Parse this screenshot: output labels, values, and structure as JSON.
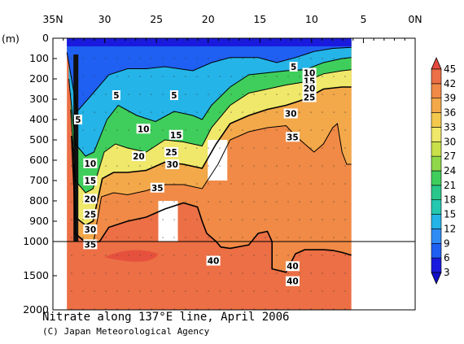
{
  "chart_data": {
    "type": "heatmap",
    "title": "Nitrate along 137°E line, April 2006",
    "credit": "(C) Japan Meteorological Agency",
    "xlabel": "",
    "ylabel": "(m)",
    "x_ticks": [
      "35N",
      "30",
      "25",
      "20",
      "15",
      "10",
      "5",
      "0N"
    ],
    "x_tick_values": [
      35,
      30,
      25,
      20,
      15,
      10,
      5,
      0
    ],
    "xlim": [
      35,
      0
    ],
    "y_ticks_upper": [
      0,
      100,
      200,
      300,
      400,
      500,
      600,
      700,
      800,
      900,
      1000
    ],
    "y_ticks_lower": [
      1500,
      2000
    ],
    "ylim": [
      0,
      2000
    ],
    "y_break_depth": 1000,
    "data_extent_lat": [
      33.5,
      3
    ],
    "colorbar": {
      "levels": [
        3,
        6,
        9,
        12,
        15,
        18,
        21,
        24,
        27,
        30,
        33,
        36,
        39,
        42,
        45
      ],
      "colors": [
        "#1a1adf",
        "#1f5ff2",
        "#2f8cf5",
        "#24b4e8",
        "#25c7b0",
        "#2ac78a",
        "#3fce5b",
        "#8fd84a",
        "#c9e04a",
        "#efe86a",
        "#f3c84d",
        "#f3a84a",
        "#f08a46",
        "#ec6f45",
        "#e54a3c"
      ]
    },
    "contour_labels": [
      {
        "text": "5",
        "lat": 32.3,
        "depth": 400
      },
      {
        "text": "5",
        "lat": 28.2,
        "depth": 280
      },
      {
        "text": "5",
        "lat": 22.0,
        "depth": 280
      },
      {
        "text": "5",
        "lat": 9.2,
        "depth": 140
      },
      {
        "text": "10",
        "lat": 7.5,
        "depth": 170
      },
      {
        "text": "15",
        "lat": 7.5,
        "depth": 210
      },
      {
        "text": "20",
        "lat": 7.5,
        "depth": 245
      },
      {
        "text": "25",
        "lat": 7.5,
        "depth": 290
      },
      {
        "text": "30",
        "lat": 9.5,
        "depth": 370
      },
      {
        "text": "35",
        "lat": 9.3,
        "depth": 485
      },
      {
        "text": "10",
        "lat": 25.3,
        "depth": 445
      },
      {
        "text": "15",
        "lat": 21.8,
        "depth": 475
      },
      {
        "text": "20",
        "lat": 25.8,
        "depth": 580
      },
      {
        "text": "25",
        "lat": 22.3,
        "depth": 560
      },
      {
        "text": "30",
        "lat": 22.2,
        "depth": 620
      },
      {
        "text": "35",
        "lat": 23.8,
        "depth": 735
      },
      {
        "text": "10",
        "lat": 31.0,
        "depth": 615
      },
      {
        "text": "15",
        "lat": 31.0,
        "depth": 700
      },
      {
        "text": "20",
        "lat": 31.0,
        "depth": 790
      },
      {
        "text": "25",
        "lat": 31.0,
        "depth": 865
      },
      {
        "text": "30",
        "lat": 31.0,
        "depth": 940
      },
      {
        "text": "35",
        "lat": 31.0,
        "depth": 1040
      },
      {
        "text": "40",
        "lat": 17.8,
        "depth": 1280
      },
      {
        "text": "40",
        "lat": 9.3,
        "depth": 1360
      },
      {
        "text": "40",
        "lat": 9.3,
        "depth": 1580
      }
    ],
    "contour_lines": [
      {
        "level": 5,
        "points": [
          [
            33.5,
            70
          ],
          [
            32.4,
            360
          ],
          [
            30.5,
            260
          ],
          [
            29,
            180
          ],
          [
            27,
            150
          ],
          [
            25,
            150
          ],
          [
            23,
            140
          ],
          [
            20,
            160
          ],
          [
            18,
            120
          ],
          [
            16,
            95
          ],
          [
            13,
            95
          ],
          [
            11,
            120
          ],
          [
            9,
            95
          ],
          [
            7,
            65
          ],
          [
            5,
            50
          ],
          [
            3,
            45
          ]
        ]
      },
      {
        "level": 10,
        "points": [
          [
            33.3,
            200
          ],
          [
            32.6,
            520
          ],
          [
            31.5,
            580
          ],
          [
            30.6,
            560
          ],
          [
            29.2,
            400
          ],
          [
            28,
            330
          ],
          [
            26,
            380
          ],
          [
            24,
            410
          ],
          [
            22,
            360
          ],
          [
            20,
            380
          ],
          [
            19,
            400
          ],
          [
            18,
            330
          ],
          [
            16,
            240
          ],
          [
            14,
            180
          ],
          [
            12,
            170
          ],
          [
            10,
            160
          ],
          [
            8,
            155
          ],
          [
            6,
            120
          ],
          [
            4,
            100
          ],
          [
            3,
            95
          ]
        ]
      },
      {
        "level": 20,
        "points": [
          [
            33.1,
            350
          ],
          [
            32.6,
            700
          ],
          [
            31.5,
            760
          ],
          [
            30.7,
            740
          ],
          [
            29.5,
            560
          ],
          [
            28.3,
            520
          ],
          [
            27,
            540
          ],
          [
            25,
            560
          ],
          [
            23,
            500
          ],
          [
            21,
            510
          ],
          [
            19,
            530
          ],
          [
            18,
            440
          ],
          [
            16,
            330
          ],
          [
            14,
            270
          ],
          [
            12,
            250
          ],
          [
            10,
            230
          ],
          [
            8,
            215
          ],
          [
            6,
            175
          ],
          [
            4,
            160
          ],
          [
            3,
            155
          ]
        ]
      },
      {
        "level": 30,
        "points": [
          [
            33,
            480
          ],
          [
            32.6,
            880
          ],
          [
            31.5,
            920
          ],
          [
            30.7,
            900
          ],
          [
            29.7,
            690
          ],
          [
            28.5,
            660
          ],
          [
            27,
            660
          ],
          [
            25,
            650
          ],
          [
            23,
            610
          ],
          [
            21,
            620
          ],
          [
            19,
            640
          ],
          [
            17.5,
            520
          ],
          [
            16,
            420
          ],
          [
            14,
            380
          ],
          [
            12,
            350
          ],
          [
            10,
            330
          ],
          [
            8,
            300
          ],
          [
            6,
            250
          ],
          [
            4,
            240
          ],
          [
            3,
            240
          ]
        ]
      },
      {
        "level": 35,
        "points": [
          [
            32.9,
            560
          ],
          [
            32.6,
            960
          ],
          [
            31.5,
            1000
          ],
          [
            30.6,
            990
          ],
          [
            29.8,
            780
          ],
          [
            28.5,
            760
          ],
          [
            27,
            770
          ],
          [
            25,
            750
          ],
          [
            23,
            720
          ],
          [
            21,
            720
          ],
          [
            19,
            740
          ],
          [
            17.3,
            620
          ],
          [
            16,
            500
          ],
          [
            14,
            460
          ],
          [
            12,
            440
          ],
          [
            10,
            430
          ],
          [
            9,
            480
          ],
          [
            8,
            520
          ],
          [
            7,
            560
          ],
          [
            6,
            520
          ],
          [
            5,
            440
          ],
          [
            4.5,
            420
          ],
          [
            4,
            560
          ],
          [
            3.5,
            620
          ],
          [
            3,
            620
          ]
        ]
      },
      {
        "level": 40,
        "points": [
          [
            32.7,
            960
          ],
          [
            31.3,
            1030
          ],
          [
            30,
            1000
          ],
          [
            29,
            930
          ],
          [
            27,
            900
          ],
          [
            25,
            880
          ],
          [
            23,
            840
          ],
          [
            21,
            810
          ],
          [
            19.5,
            830
          ],
          [
            19,
            900
          ],
          [
            18.5,
            960
          ],
          [
            17.5,
            1000
          ],
          [
            17,
            1080
          ],
          [
            16,
            1100
          ],
          [
            14,
            1050
          ],
          [
            13,
            960
          ],
          [
            12,
            950
          ],
          [
            11.5,
            1000
          ],
          [
            11.5,
            1400
          ],
          [
            10,
            1450
          ],
          [
            9,
            1180
          ],
          [
            8,
            1120
          ],
          [
            6,
            1120
          ],
          [
            5,
            1130
          ],
          [
            4,
            1160
          ],
          [
            3,
            1200
          ]
        ]
      }
    ]
  }
}
